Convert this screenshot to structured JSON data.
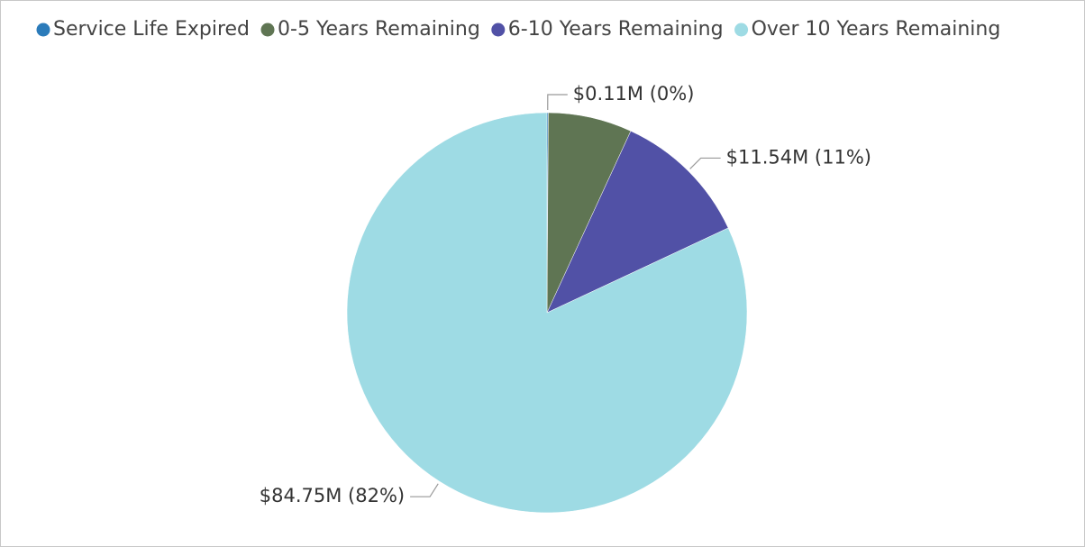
{
  "chart_data": {
    "type": "pie",
    "categories": [
      "Service Life Expired",
      "0-5 Years Remaining",
      "6-10 Years Remaining",
      "Over 10 Years Remaining"
    ],
    "values": [
      0.11,
      7.0,
      11.54,
      84.75
    ],
    "value_labels": [
      "$0.11M (0%)",
      null,
      "$11.54M (11%)",
      "$84.75M (82%)"
    ],
    "colors": [
      "#2b7bba",
      "#5f7553",
      "#5151a6",
      "#9edbe4"
    ],
    "legend": "top"
  }
}
